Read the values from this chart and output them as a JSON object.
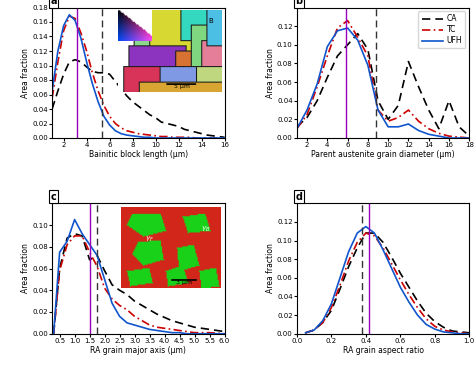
{
  "panel_a": {
    "xlabel": "Bainitic block length (μm)",
    "ylabel": "Area fraction",
    "xlim": [
      1,
      16
    ],
    "ylim": [
      0,
      0.18
    ],
    "yticks": [
      0.0,
      0.02,
      0.04,
      0.06,
      0.08,
      0.1,
      0.12,
      0.14,
      0.16,
      0.18
    ],
    "xticks": [
      2,
      4,
      6,
      8,
      10,
      12,
      14,
      16
    ],
    "vline_UFH": 3.2,
    "vline_CA": 5.3,
    "label": "a",
    "CA_x": [
      1.0,
      1.5,
      2.0,
      2.5,
      3.0,
      3.5,
      4.0,
      4.5,
      5.0,
      5.5,
      6.0,
      6.5,
      7.0,
      7.5,
      8.0,
      8.5,
      9.0,
      9.5,
      10.0,
      10.5,
      11.0,
      11.5,
      12.0,
      12.5,
      13.0,
      13.5,
      14.0,
      14.5,
      15.0,
      15.5,
      16.0
    ],
    "CA_y": [
      0.04,
      0.065,
      0.088,
      0.105,
      0.108,
      0.105,
      0.098,
      0.092,
      0.09,
      0.09,
      0.088,
      0.078,
      0.068,
      0.058,
      0.05,
      0.044,
      0.038,
      0.032,
      0.028,
      0.022,
      0.02,
      0.018,
      0.016,
      0.012,
      0.01,
      0.008,
      0.006,
      0.004,
      0.003,
      0.002,
      0.001
    ],
    "TC_x": [
      1.0,
      1.5,
      2.0,
      2.5,
      3.0,
      3.5,
      4.0,
      4.5,
      5.0,
      5.5,
      6.0,
      6.5,
      7.0,
      7.5,
      8.0,
      8.5,
      9.0,
      9.5,
      10.0,
      10.5,
      11.0,
      11.5,
      12.0,
      12.5,
      13.0,
      13.5,
      14.0,
      14.5,
      15.0,
      15.5,
      16.0
    ],
    "TC_y": [
      0.055,
      0.105,
      0.148,
      0.168,
      0.165,
      0.145,
      0.12,
      0.09,
      0.065,
      0.045,
      0.03,
      0.02,
      0.014,
      0.01,
      0.008,
      0.006,
      0.005,
      0.004,
      0.003,
      0.002,
      0.002,
      0.001,
      0.001,
      0.001,
      0.001,
      0.0,
      0.0,
      0.0,
      0.0,
      0.0,
      0.0
    ],
    "UFH_x": [
      1.0,
      1.5,
      2.0,
      2.5,
      3.0,
      3.5,
      4.0,
      4.5,
      5.0,
      5.5,
      6.0,
      6.5,
      7.0,
      7.5,
      8.0,
      8.5,
      9.0,
      9.5,
      10.0,
      10.5,
      11.0,
      11.5,
      12.0,
      12.5,
      13.0,
      13.5,
      14.0,
      14.5,
      15.0,
      15.5,
      16.0
    ],
    "UFH_y": [
      0.065,
      0.12,
      0.155,
      0.17,
      0.162,
      0.138,
      0.105,
      0.075,
      0.05,
      0.03,
      0.018,
      0.01,
      0.006,
      0.004,
      0.003,
      0.002,
      0.001,
      0.001,
      0.0,
      0.0,
      0.0,
      0.0,
      0.0,
      0.0,
      0.0,
      0.0,
      0.0,
      0.0,
      0.0,
      0.0,
      0.0
    ]
  },
  "panel_b": {
    "xlabel": "Parent austenite grain diameter (μm)",
    "ylabel": "Area fraction",
    "xlim": [
      1,
      18
    ],
    "ylim": [
      0,
      0.14
    ],
    "yticks": [
      0.0,
      0.02,
      0.04,
      0.06,
      0.08,
      0.1,
      0.12
    ],
    "xticks": [
      2,
      4,
      6,
      8,
      10,
      12,
      14,
      16,
      18
    ],
    "vline_UFH": 5.8,
    "vline_CA": 8.8,
    "label": "b",
    "CA_x": [
      1,
      2,
      3,
      4,
      5,
      6,
      7,
      8,
      9,
      10,
      11,
      12,
      13,
      14,
      15,
      16,
      17,
      18
    ],
    "CA_y": [
      0.012,
      0.022,
      0.04,
      0.065,
      0.088,
      0.1,
      0.112,
      0.095,
      0.04,
      0.02,
      0.035,
      0.082,
      0.055,
      0.03,
      0.01,
      0.04,
      0.012,
      0.002
    ],
    "TC_x": [
      1,
      2,
      3,
      4,
      5,
      6,
      7,
      8,
      9,
      10,
      11,
      12,
      13,
      14,
      15,
      16,
      17,
      18
    ],
    "TC_y": [
      0.01,
      0.025,
      0.055,
      0.088,
      0.118,
      0.126,
      0.108,
      0.088,
      0.03,
      0.018,
      0.022,
      0.03,
      0.018,
      0.01,
      0.005,
      0.002,
      0.001,
      0.0
    ],
    "UFH_x": [
      1,
      2,
      3,
      4,
      5,
      6,
      7,
      8,
      9,
      10,
      11,
      12,
      13,
      14,
      15,
      16,
      17,
      18
    ],
    "UFH_y": [
      0.01,
      0.03,
      0.058,
      0.098,
      0.115,
      0.118,
      0.105,
      0.078,
      0.03,
      0.012,
      0.012,
      0.015,
      0.008,
      0.004,
      0.002,
      0.0,
      0.0,
      0.0
    ]
  },
  "panel_c": {
    "xlabel": "RA grain major axis (μm)",
    "ylabel": "Area fraction",
    "xlim": [
      0.25,
      6.0
    ],
    "ylim": [
      0,
      0.12
    ],
    "yticks": [
      0.0,
      0.02,
      0.04,
      0.06,
      0.08,
      0.1
    ],
    "xticks": [
      0.5,
      1.0,
      1.5,
      2.0,
      2.5,
      3.0,
      3.5,
      4.0,
      4.5,
      5.0,
      5.5,
      6.0
    ],
    "vline_UFH": 1.5,
    "vline_CA": 1.75,
    "label": "c",
    "CA_x": [
      0.3,
      0.5,
      0.75,
      1.0,
      1.25,
      1.5,
      1.75,
      2.0,
      2.25,
      2.5,
      2.75,
      3.0,
      3.25,
      3.5,
      3.75,
      4.0,
      4.25,
      4.5,
      4.75,
      5.0,
      5.5,
      6.0
    ],
    "CA_y": [
      0.0,
      0.06,
      0.088,
      0.092,
      0.09,
      0.068,
      0.072,
      0.058,
      0.045,
      0.04,
      0.036,
      0.03,
      0.026,
      0.022,
      0.018,
      0.015,
      0.012,
      0.01,
      0.008,
      0.006,
      0.004,
      0.002
    ],
    "TC_x": [
      0.3,
      0.5,
      0.75,
      1.0,
      1.25,
      1.5,
      1.75,
      2.0,
      2.25,
      2.5,
      2.75,
      3.0,
      3.25,
      3.5,
      3.75,
      4.0,
      4.25,
      4.5,
      4.75,
      5.0,
      5.5,
      6.0
    ],
    "TC_y": [
      0.0,
      0.058,
      0.082,
      0.09,
      0.09,
      0.075,
      0.062,
      0.042,
      0.032,
      0.026,
      0.022,
      0.016,
      0.012,
      0.008,
      0.006,
      0.005,
      0.004,
      0.003,
      0.002,
      0.001,
      0.001,
      0.0
    ],
    "UFH_x": [
      0.3,
      0.5,
      0.75,
      1.0,
      1.25,
      1.5,
      1.75,
      2.0,
      2.25,
      2.5,
      2.75,
      3.0,
      3.25,
      3.5,
      3.75,
      4.0,
      4.25,
      4.5,
      4.75,
      5.0,
      5.5,
      6.0
    ],
    "UFH_y": [
      0.0,
      0.075,
      0.085,
      0.105,
      0.092,
      0.082,
      0.072,
      0.05,
      0.028,
      0.016,
      0.01,
      0.008,
      0.006,
      0.004,
      0.003,
      0.002,
      0.001,
      0.001,
      0.0,
      0.0,
      0.0,
      0.0
    ]
  },
  "panel_d": {
    "xlabel": "RA grain aspect ratio",
    "ylabel": "Area fraction",
    "xlim": [
      0,
      1.0
    ],
    "ylim": [
      0,
      0.14
    ],
    "yticks": [
      0.0,
      0.02,
      0.04,
      0.06,
      0.08,
      0.1,
      0.12
    ],
    "xticks": [
      0.0,
      0.2,
      0.4,
      0.6,
      0.8,
      1.0
    ],
    "vline_UFH": 0.42,
    "vline_CA": 0.38,
    "label": "d",
    "CA_x": [
      0.05,
      0.1,
      0.15,
      0.2,
      0.25,
      0.3,
      0.35,
      0.4,
      0.45,
      0.5,
      0.55,
      0.6,
      0.65,
      0.7,
      0.75,
      0.8,
      0.85,
      0.9,
      0.95,
      1.0
    ],
    "CA_y": [
      0.001,
      0.004,
      0.012,
      0.025,
      0.048,
      0.072,
      0.092,
      0.108,
      0.108,
      0.098,
      0.082,
      0.065,
      0.05,
      0.035,
      0.022,
      0.013,
      0.007,
      0.003,
      0.002,
      0.001
    ],
    "TC_x": [
      0.05,
      0.1,
      0.15,
      0.2,
      0.25,
      0.3,
      0.35,
      0.4,
      0.45,
      0.5,
      0.55,
      0.6,
      0.65,
      0.7,
      0.75,
      0.8,
      0.85,
      0.9,
      0.95,
      1.0
    ],
    "TC_y": [
      0.001,
      0.004,
      0.012,
      0.028,
      0.052,
      0.078,
      0.098,
      0.108,
      0.105,
      0.092,
      0.075,
      0.058,
      0.042,
      0.028,
      0.016,
      0.008,
      0.004,
      0.002,
      0.001,
      0.0
    ],
    "UFH_x": [
      0.05,
      0.1,
      0.15,
      0.2,
      0.25,
      0.3,
      0.35,
      0.4,
      0.45,
      0.5,
      0.55,
      0.6,
      0.65,
      0.7,
      0.75,
      0.8,
      0.85,
      0.9,
      0.95,
      1.0
    ],
    "UFH_y": [
      0.001,
      0.004,
      0.014,
      0.032,
      0.06,
      0.088,
      0.108,
      0.115,
      0.108,
      0.09,
      0.07,
      0.05,
      0.034,
      0.02,
      0.01,
      0.005,
      0.002,
      0.001,
      0.0,
      0.0
    ]
  },
  "colors": {
    "CA": "#000000",
    "TC": "#cc0000",
    "UFH": "#1155cc"
  },
  "vline_color_mean": "#8800bb",
  "vline_color_CA": "#555555"
}
